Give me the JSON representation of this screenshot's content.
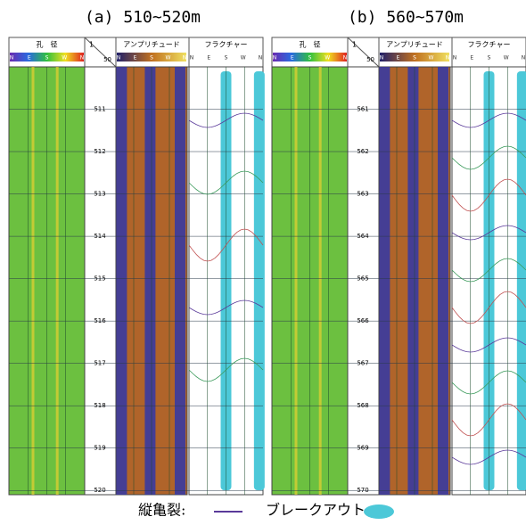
{
  "panels": [
    {
      "title": "(a)  510~520m",
      "headers": [
        "孔　径",
        "アンプリチュード",
        "フラクチャー"
      ],
      "scale_top": "1",
      "scale_bottom": "50",
      "depths": [
        "511",
        "512",
        "513",
        "514",
        "515",
        "516",
        "517",
        "518",
        "519",
        "520"
      ]
    },
    {
      "title": "(b)  560~570m",
      "headers": [
        "孔　径",
        "アンプリチュード",
        "フラクチャー"
      ],
      "scale_top": "1",
      "scale_bottom": "50",
      "depths": [
        "561",
        "562",
        "563",
        "564",
        "565",
        "566",
        "567",
        "568",
        "569",
        "570"
      ]
    }
  ],
  "azimuth_labels": [
    "N",
    "E",
    "S",
    "W",
    "N"
  ],
  "legend": {
    "vertical_crack": "縦亀裂:",
    "breakout": "ブレークアウト:"
  }
}
